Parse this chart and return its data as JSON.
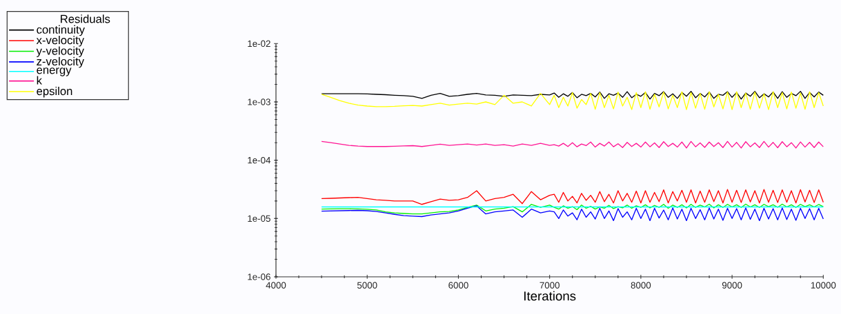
{
  "chart_data": {
    "type": "line",
    "xlabel": "Iterations",
    "legend_title": "Residuals",
    "legend": "top left",
    "log": "y",
    "xlim": [
      4000,
      10000
    ],
    "xticks": [
      4000,
      5000,
      6000,
      7000,
      8000,
      9000,
      10000
    ],
    "ylim": [
      1e-06,
      0.01
    ],
    "yticks": [
      {
        "value": 1e-06,
        "label": "1e-06"
      },
      {
        "value": 1e-05,
        "label": "1e-05"
      },
      {
        "value": 0.0001,
        "label": "1e-04"
      },
      {
        "value": 0.001,
        "label": "1e-03"
      },
      {
        "value": 0.01,
        "label": "1e-02"
      }
    ],
    "x": [
      4500,
      4600,
      4700,
      4800,
      4900,
      5000,
      5100,
      5200,
      5300,
      5400,
      5500,
      5600,
      5700,
      5800,
      5900,
      6000,
      6100,
      6200,
      6300,
      6400,
      6500,
      6600,
      6700,
      6800,
      6900,
      7000,
      7050,
      7100,
      7150,
      7200,
      7250,
      7300,
      7350,
      7400,
      7450,
      7500,
      7550,
      7600,
      7650,
      7700,
      7750,
      7800,
      7850,
      7900,
      7950,
      8000,
      8050,
      8100,
      8150,
      8200,
      8250,
      8300,
      8350,
      8400,
      8450,
      8500,
      8550,
      8600,
      8650,
      8700,
      8750,
      8800,
      8850,
      8900,
      8950,
      9000,
      9050,
      9100,
      9150,
      9200,
      9250,
      9300,
      9350,
      9400,
      9450,
      9500,
      9550,
      9600,
      9650,
      9700,
      9750,
      9800,
      9850,
      9900,
      9950,
      10000
    ],
    "series": [
      {
        "name": "continuity",
        "color": "#000000",
        "values": [
          0.00138,
          0.00138,
          0.00138,
          0.00138,
          0.00138,
          0.00137,
          0.00135,
          0.00133,
          0.0013,
          0.00128,
          0.00125,
          0.00115,
          0.0013,
          0.0014,
          0.00125,
          0.00128,
          0.00135,
          0.0014,
          0.00132,
          0.0013,
          0.00125,
          0.00132,
          0.0013,
          0.00128,
          0.00135,
          0.00132,
          0.00142,
          0.0012,
          0.00138,
          0.00125,
          0.00145,
          0.00118,
          0.00135,
          0.00128,
          0.0014,
          0.00122,
          0.00148,
          0.00115,
          0.00138,
          0.0013,
          0.00142,
          0.0012,
          0.0015,
          0.00118,
          0.00135,
          0.00125,
          0.00145,
          0.00112,
          0.0014,
          0.00128,
          0.0015,
          0.0012,
          0.00138,
          0.00115,
          0.00145,
          0.00125,
          0.00152,
          0.00118,
          0.0014,
          0.00122,
          0.00148,
          0.00115,
          0.00135,
          0.0013,
          0.0015,
          0.0012,
          0.00145,
          0.00112,
          0.00142,
          0.00125,
          0.00152,
          0.00118,
          0.00138,
          0.00122,
          0.00148,
          0.00115,
          0.0015,
          0.0012,
          0.0014,
          0.00128,
          0.00152,
          0.00115,
          0.00145,
          0.00122,
          0.00148,
          0.0013
        ]
      },
      {
        "name": "x-velocity",
        "color": "#ff0000",
        "values": [
          2.2e-05,
          2.22e-05,
          2.25e-05,
          2.28e-05,
          2.3e-05,
          2.2e-05,
          2.1e-05,
          2.05e-05,
          2e-05,
          2e-05,
          2e-05,
          1.75e-05,
          1.95e-05,
          2.15e-05,
          2.05e-05,
          2.1e-05,
          2.3e-05,
          3e-05,
          2e-05,
          2.2e-05,
          2.3e-05,
          2.6e-05,
          1.8e-05,
          2.9e-05,
          2.1e-05,
          2.5e-05,
          2.6e-05,
          1.9e-05,
          2.8e-05,
          2e-05,
          2.4e-05,
          1.85e-05,
          2.7e-05,
          2.05e-05,
          2.5e-05,
          1.9e-05,
          2.9e-05,
          1.95e-05,
          2.6e-05,
          1.85e-05,
          3e-05,
          2e-05,
          2.7e-05,
          1.9e-05,
          2.95e-05,
          1.85e-05,
          3e-05,
          1.9e-05,
          2.8e-05,
          1.95e-05,
          3.1e-05,
          1.85e-05,
          2.9e-05,
          2e-05,
          3.05e-05,
          1.9e-05,
          3.1e-05,
          1.85e-05,
          2.95e-05,
          1.9e-05,
          3.1e-05,
          1.95e-05,
          3e-05,
          1.85e-05,
          3.15e-05,
          1.9e-05,
          3.05e-05,
          1.88e-05,
          3.1e-05,
          1.92e-05,
          3e-05,
          1.85e-05,
          3.15e-05,
          1.9e-05,
          3.05e-05,
          1.88e-05,
          3.1e-05,
          1.9e-05,
          3e-05,
          1.85e-05,
          3.12e-05,
          1.92e-05,
          3.05e-05,
          1.88e-05,
          3.1e-05,
          1.9e-05
        ]
      },
      {
        "name": "y-velocity",
        "color": "#00ee00",
        "values": [
          1.45e-05,
          1.46e-05,
          1.47e-05,
          1.47e-05,
          1.46e-05,
          1.44e-05,
          1.4e-05,
          1.3e-05,
          1.25e-05,
          1.22e-05,
          1.2e-05,
          1.2e-05,
          1.25e-05,
          1.3e-05,
          1.32e-05,
          1.4e-05,
          1.55e-05,
          1.7e-05,
          1.35e-05,
          1.45e-05,
          1.5e-05,
          1.6e-05,
          1.3e-05,
          1.75e-05,
          1.55e-05,
          1.7e-05,
          1.55e-05,
          1.45e-05,
          1.65e-05,
          1.5e-05,
          1.6e-05,
          1.42e-05,
          1.7e-05,
          1.5e-05,
          1.62e-05,
          1.45e-05,
          1.58e-05,
          1.5e-05,
          1.68e-05,
          1.48e-05,
          1.6e-05,
          1.52e-05,
          1.7e-05,
          1.5e-05,
          1.65e-05,
          1.55e-05,
          1.72e-05,
          1.52e-05,
          1.68e-05,
          1.55e-05,
          1.75e-05,
          1.5e-05,
          1.7e-05,
          1.55e-05,
          1.72e-05,
          1.52e-05,
          1.75e-05,
          1.55e-05,
          1.7e-05,
          1.58e-05,
          1.76e-05,
          1.52e-05,
          1.72e-05,
          1.55e-05,
          1.75e-05,
          1.58e-05,
          1.72e-05,
          1.55e-05,
          1.76e-05,
          1.58e-05,
          1.72e-05,
          1.55e-05,
          1.75e-05,
          1.6e-05,
          1.72e-05,
          1.56e-05,
          1.76e-05,
          1.58e-05,
          1.72e-05,
          1.55e-05,
          1.75e-05,
          1.6e-05,
          1.72e-05,
          1.58e-05,
          1.74e-05,
          1.6e-05
        ]
      },
      {
        "name": "z-velocity",
        "color": "#0000ff",
        "values": [
          1.34e-05,
          1.35e-05,
          1.36e-05,
          1.37e-05,
          1.38e-05,
          1.36e-05,
          1.32e-05,
          1.25e-05,
          1.18e-05,
          1.12e-05,
          1.1e-05,
          1.08e-05,
          1.15e-05,
          1.2e-05,
          1.25e-05,
          1.35e-05,
          1.5e-05,
          1.65e-05,
          1.2e-05,
          1.3e-05,
          1.35e-05,
          1.4e-05,
          1.05e-05,
          1.45e-05,
          1.25e-05,
          1.35e-05,
          1.3e-05,
          1e-05,
          1.4e-05,
          1.1e-05,
          1.25e-05,
          9.5e-06,
          1.45e-05,
          1.05e-05,
          1.3e-05,
          9.8e-06,
          1.5e-05,
          1e-05,
          1.35e-05,
          9.2e-06,
          1.48e-05,
          1.05e-05,
          1.3e-05,
          9.5e-06,
          1.5e-05,
          1e-05,
          1.45e-05,
          9.2e-06,
          1.5e-05,
          1.02e-05,
          1.4e-05,
          9.5e-06,
          1.52e-05,
          9.8e-06,
          1.45e-05,
          9.2e-06,
          1.5e-05,
          1e-05,
          1.42e-05,
          9.5e-06,
          1.52e-05,
          9.8e-06,
          1.45e-05,
          9.3e-06,
          1.5e-05,
          1e-05,
          1.48e-05,
          9.5e-06,
          1.52e-05,
          9.7e-06,
          1.45e-05,
          9.2e-06,
          1.5e-05,
          9.8e-06,
          1.48e-05,
          9.5e-06,
          1.52e-05,
          9.6e-06,
          1.45e-05,
          9.3e-06,
          1.5e-05,
          1e-05,
          1.48e-05,
          9.5e-06,
          1.5e-05,
          9.8e-06
        ]
      },
      {
        "name": "energy",
        "color": "#00ffff",
        "x": [
          4500,
          10000
        ],
        "values": [
          1.58e-05,
          1.58e-05
        ]
      },
      {
        "name": "k",
        "color": "#ff1493",
        "values": [
          0.00021,
          0.0002,
          0.00019,
          0.00018,
          0.000175,
          0.000172,
          0.000172,
          0.000172,
          0.000174,
          0.000176,
          0.000178,
          0.000172,
          0.00018,
          0.000188,
          0.00018,
          0.000185,
          0.00019,
          0.000182,
          0.00019,
          0.00018,
          0.000185,
          0.000175,
          0.00019,
          0.00018,
          0.000195,
          0.00018,
          0.000185,
          0.000175,
          0.000195,
          0.000172,
          0.0002,
          0.00017,
          0.00019,
          0.000178,
          0.000205,
          0.000168,
          0.000195,
          0.000175,
          0.000205,
          0.00017,
          0.000192,
          0.000165,
          0.000202,
          0.000172,
          0.000195,
          0.000168,
          0.000205,
          0.00017,
          0.000198,
          0.000165,
          0.000208,
          0.000172,
          0.000195,
          0.000168,
          0.000205,
          0.000162,
          0.00021,
          0.00017,
          0.000198,
          0.000166,
          0.000205,
          0.000172,
          0.0002,
          0.000165,
          0.00021,
          0.000168,
          0.000202,
          0.000162,
          0.000208,
          0.00017,
          0.000198,
          0.000165,
          0.00021,
          0.000168,
          0.000202,
          0.000164,
          0.000208,
          0.00017,
          0.0002,
          0.000162,
          0.000206,
          0.000168,
          0.000202,
          0.000165,
          0.000205,
          0.00017
        ]
      },
      {
        "name": "epsilon",
        "color": "#ffff00",
        "values": [
          0.00135,
          0.0012,
          0.00105,
          0.00095,
          0.00088,
          0.00085,
          0.00083,
          0.00083,
          0.00084,
          0.00086,
          0.00087,
          0.00085,
          0.0009,
          0.00095,
          0.00088,
          0.00092,
          0.00095,
          0.00092,
          0.001,
          0.0009,
          0.0013,
          0.00095,
          0.001,
          0.00085,
          0.0014,
          0.0009,
          0.0013,
          0.0008,
          0.0012,
          0.00085,
          0.00145,
          0.00078,
          0.0011,
          0.0009,
          0.0014,
          0.00075,
          0.00145,
          0.0008,
          0.0013,
          0.00076,
          0.00148,
          0.00085,
          0.0012,
          0.00074,
          0.00145,
          0.0008,
          0.0015,
          0.00075,
          0.00135,
          0.00082,
          0.00148,
          0.00076,
          0.0013,
          0.0008,
          0.0015,
          0.00074,
          0.00145,
          0.00078,
          0.0014,
          0.00075,
          0.0015,
          0.00082,
          0.00135,
          0.00076,
          0.00148,
          0.00074,
          0.0015,
          0.0008,
          0.00142,
          0.00075,
          0.00148,
          0.00078,
          0.00138,
          0.00074,
          0.0015,
          0.0008,
          0.00145,
          0.00076,
          0.00148,
          0.00078,
          0.00142,
          0.00075,
          0.0015,
          0.0008,
          0.00145,
          0.00085
        ]
      }
    ]
  }
}
